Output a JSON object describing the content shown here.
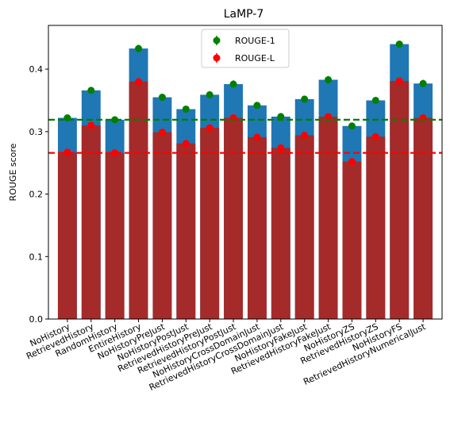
{
  "chart_data": {
    "type": "bar",
    "title": "LaMP-7",
    "xlabel": "",
    "ylabel": "ROUGE score",
    "ylim": [
      0,
      0.47
    ],
    "yticks": [
      0.0,
      0.1,
      0.2,
      0.3,
      0.4
    ],
    "ytick_labels": [
      "0.0",
      "0.1",
      "0.2",
      "0.3",
      "0.4"
    ],
    "grid": false,
    "legend_position": "top-center",
    "categories": [
      "NoHistory",
      "RetrievedHistory",
      "RandomHistory",
      "EntireHistory",
      "NoHistoryPreJust",
      "NoHistoryPostJust",
      "RetrievedHistoryPreJust",
      "RetrievedHistoryPostJust",
      "NoHistoryCrossDomainJust",
      "RetrievedHistoryCrossDomainJust",
      "NoHistoryFakeJust",
      "RetrievedHistoryFakeJust",
      "NoHistoryZS",
      "RetrievedHistoryZS",
      "NoHistoryFS",
      "RetrievedHistoryNumericalJust"
    ],
    "series": [
      {
        "name": "ROUGE-1",
        "bar_color": "#1f77b4",
        "marker_color": "#008000",
        "values": [
          0.322,
          0.366,
          0.319,
          0.433,
          0.355,
          0.336,
          0.359,
          0.376,
          0.342,
          0.324,
          0.352,
          0.383,
          0.309,
          0.35,
          0.44,
          0.377
        ],
        "errors": [
          0.005,
          0.005,
          0.005,
          0.006,
          0.005,
          0.005,
          0.005,
          0.006,
          0.005,
          0.005,
          0.005,
          0.006,
          0.005,
          0.005,
          0.005,
          0.006
        ]
      },
      {
        "name": "ROUGE-L",
        "bar_color": "#a52a2a",
        "marker_color": "#ff0000",
        "values": [
          0.267,
          0.31,
          0.266,
          0.38,
          0.299,
          0.281,
          0.306,
          0.322,
          0.291,
          0.274,
          0.294,
          0.324,
          0.252,
          0.292,
          0.381,
          0.322
        ],
        "errors": [
          0.004,
          0.004,
          0.004,
          0.005,
          0.004,
          0.004,
          0.004,
          0.005,
          0.004,
          0.004,
          0.004,
          0.005,
          0.004,
          0.004,
          0.005,
          0.005
        ]
      }
    ],
    "reference_lines": [
      {
        "value": 0.319,
        "color": "#008000",
        "style": "dashed"
      },
      {
        "value": 0.266,
        "color": "#ff0000",
        "style": "dashed"
      }
    ]
  }
}
